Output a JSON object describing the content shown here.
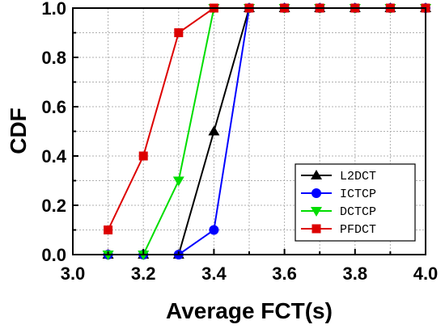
{
  "chart_data": {
    "type": "line",
    "xlabel": "Average FCT(s)",
    "ylabel": "CDF",
    "xlim": [
      3.0,
      4.0
    ],
    "ylim": [
      0.0,
      1.0
    ],
    "x_ticks": [
      "3.0",
      "3.2",
      "3.4",
      "3.6",
      "3.8",
      "4.0"
    ],
    "y_ticks": [
      "0.0",
      "0.2",
      "0.4",
      "0.6",
      "0.8",
      "1.0"
    ],
    "grid": true,
    "legend_position": "bottom-right",
    "series": [
      {
        "name": "L2DCT",
        "color": "#000000",
        "marker": "triangle-up",
        "x": [
          3.1,
          3.2,
          3.3,
          3.4,
          3.5,
          3.6,
          3.7,
          3.8,
          3.9,
          4.0
        ],
        "y": [
          0.0,
          0.0,
          0.0,
          0.5,
          1.0,
          1.0,
          1.0,
          1.0,
          1.0,
          1.0
        ]
      },
      {
        "name": "ICTCP",
        "color": "#0000ff",
        "marker": "circle",
        "x": [
          3.1,
          3.2,
          3.3,
          3.4,
          3.5,
          3.6,
          3.7,
          3.8,
          3.9,
          4.0
        ],
        "y": [
          0.0,
          0.0,
          0.0,
          0.1,
          1.0,
          1.0,
          1.0,
          1.0,
          1.0,
          1.0
        ]
      },
      {
        "name": "DCTCP",
        "color": "#00dd00",
        "marker": "triangle-down",
        "x": [
          3.1,
          3.2,
          3.3,
          3.4,
          3.5,
          3.6,
          3.7,
          3.8,
          3.9,
          4.0
        ],
        "y": [
          0.0,
          0.0,
          0.3,
          1.0,
          1.0,
          1.0,
          1.0,
          1.0,
          1.0,
          1.0
        ]
      },
      {
        "name": "PFDCT",
        "color": "#dd0000",
        "marker": "square",
        "x": [
          3.1,
          3.2,
          3.3,
          3.4,
          3.5,
          3.6,
          3.7,
          3.8,
          3.9,
          4.0
        ],
        "y": [
          0.1,
          0.4,
          0.9,
          1.0,
          1.0,
          1.0,
          1.0,
          1.0,
          1.0,
          1.0
        ]
      }
    ]
  }
}
